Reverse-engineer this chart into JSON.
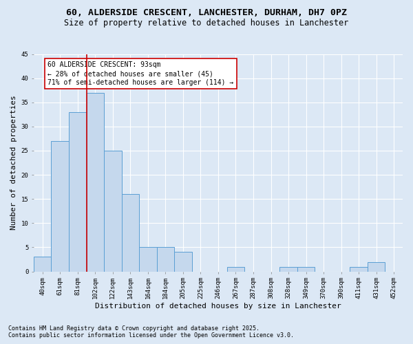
{
  "title_line1": "60, ALDERSIDE CRESCENT, LANCHESTER, DURHAM, DH7 0PZ",
  "title_line2": "Size of property relative to detached houses in Lanchester",
  "xlabel": "Distribution of detached houses by size in Lanchester",
  "ylabel": "Number of detached properties",
  "footnote1": "Contains HM Land Registry data © Crown copyright and database right 2025.",
  "footnote2": "Contains public sector information licensed under the Open Government Licence v3.0.",
  "categories": [
    "40sqm",
    "61sqm",
    "81sqm",
    "102sqm",
    "122sqm",
    "143sqm",
    "164sqm",
    "184sqm",
    "205sqm",
    "225sqm",
    "246sqm",
    "267sqm",
    "287sqm",
    "308sqm",
    "328sqm",
    "349sqm",
    "370sqm",
    "390sqm",
    "411sqm",
    "431sqm",
    "452sqm"
  ],
  "values": [
    3,
    27,
    33,
    37,
    25,
    16,
    5,
    5,
    4,
    0,
    0,
    1,
    0,
    0,
    1,
    1,
    0,
    0,
    1,
    2,
    0
  ],
  "bar_color": "#c5d8ed",
  "bar_edge_color": "#5a9fd4",
  "vline_x": 2.5,
  "vline_color": "#cc0000",
  "annotation_line1": "60 ALDERSIDE CRESCENT: 93sqm",
  "annotation_line2": "← 28% of detached houses are smaller (45)",
  "annotation_line3": "71% of semi-detached houses are larger (114) →",
  "annotation_box_color": "#ffffff",
  "annotation_box_edge": "#cc0000",
  "bg_color": "#dce8f5",
  "plot_bg_color": "#dce8f5",
  "ylim": [
    0,
    45
  ],
  "yticks": [
    0,
    5,
    10,
    15,
    20,
    25,
    30,
    35,
    40,
    45
  ],
  "grid_color": "#ffffff",
  "title_fontsize": 9.5,
  "subtitle_fontsize": 8.5,
  "axis_label_fontsize": 8,
  "tick_fontsize": 6.5,
  "annotation_fontsize": 7,
  "footnote_fontsize": 6
}
